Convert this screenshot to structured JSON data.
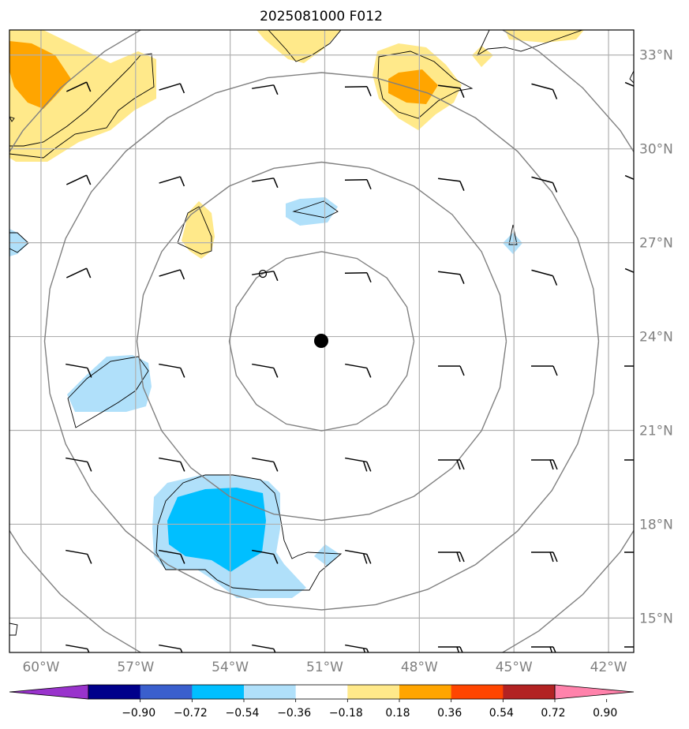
{
  "title": "2025081000 F012",
  "map": {
    "lon_range": [
      -61,
      -41.2
    ],
    "lat_range": [
      13.9,
      33.8
    ],
    "lat_ticks": [
      {
        "value": 15,
        "label": "15°N"
      },
      {
        "value": 18,
        "label": "18°N"
      },
      {
        "value": 21,
        "label": "21°N"
      },
      {
        "value": 24,
        "label": "24°N"
      },
      {
        "value": 27,
        "label": "27°N"
      },
      {
        "value": 30,
        "label": "30°N"
      },
      {
        "value": 33,
        "label": "33°N"
      }
    ],
    "lon_ticks": [
      {
        "value": -60,
        "label": "60°W"
      },
      {
        "value": -57,
        "label": "57°W"
      },
      {
        "value": -54,
        "label": "54°W"
      },
      {
        "value": -51,
        "label": "51°W"
      },
      {
        "value": -48,
        "label": "48°W"
      },
      {
        "value": -45,
        "label": "45°W"
      },
      {
        "value": -42,
        "label": "42°W"
      }
    ],
    "grid": true,
    "center_marker": {
      "lon": -51.1,
      "lat": 23.85
    },
    "range_ring_count": 4,
    "colors": {
      "grid": "#b0b0b0",
      "ring": "#808080",
      "contour": "#000000",
      "pos1": "#ffe98a",
      "pos2": "#ffa500",
      "neg1": "#b0e0fa",
      "neg2": "#00bfff"
    }
  },
  "colorbar": {
    "bins": [
      "#9933cc",
      "#00008b",
      "#3a5fcd",
      "#00bfff",
      "#b0e0fa",
      "#ffffff",
      "#ffe98a",
      "#ffa500",
      "#ff4500",
      "#b22222",
      "#ff82ab"
    ],
    "tick_labels": [
      "−0.90",
      "−0.72",
      "−0.54",
      "−0.36",
      "−0.18",
      "0.18",
      "0.36",
      "0.54",
      "0.72",
      "0.90"
    ]
  }
}
